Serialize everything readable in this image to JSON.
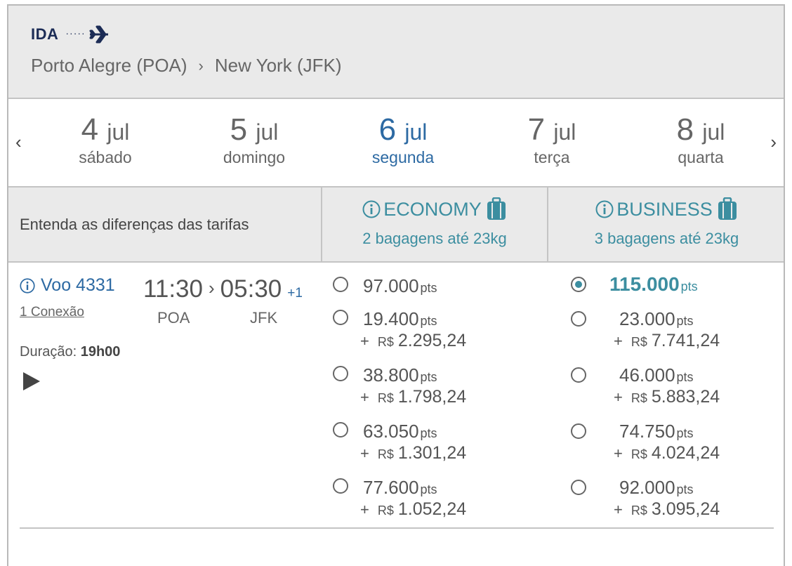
{
  "header": {
    "direction_label": "IDA",
    "origin": "Porto Alegre (POA)",
    "destination": "New York (JFK)"
  },
  "dates": [
    {
      "day": "4",
      "month": "jul",
      "weekday": "sábado",
      "active": false
    },
    {
      "day": "5",
      "month": "jul",
      "weekday": "domingo",
      "active": false
    },
    {
      "day": "6",
      "month": "jul",
      "weekday": "segunda",
      "active": true
    },
    {
      "day": "7",
      "month": "jul",
      "weekday": "terça",
      "active": false
    },
    {
      "day": "8",
      "month": "jul",
      "weekday": "quarta",
      "active": false
    }
  ],
  "cabins": {
    "entenda": "Entenda as diferenças das tarifas",
    "economy": {
      "title": "ECONOMY",
      "bags": "2 bagagens até 23kg"
    },
    "business": {
      "title": "BUSINESS",
      "bags": "3 bagagens até 23kg"
    }
  },
  "flight": {
    "number": "Voo 4331",
    "connections": "1 Conexão",
    "depart_time": "11:30",
    "arrive_time": "05:30",
    "day_offset": "+1",
    "origin_code": "POA",
    "dest_code": "JFK",
    "duration_label": "Duração:",
    "duration_value": "19h00"
  },
  "units": {
    "pts": "pts",
    "plus": "+",
    "currency": "R$"
  },
  "economy_fares": [
    {
      "points": "97.000",
      "cash": ""
    },
    {
      "points": "19.400",
      "cash": "2.295,24"
    },
    {
      "points": "38.800",
      "cash": "1.798,24"
    },
    {
      "points": "63.050",
      "cash": "1.301,24"
    },
    {
      "points": "77.600",
      "cash": "1.052,24"
    }
  ],
  "business_fares": [
    {
      "points": "115.000",
      "cash": "",
      "selected": true
    },
    {
      "points": "23.000",
      "cash": "7.741,24"
    },
    {
      "points": "46.000",
      "cash": "5.883,24"
    },
    {
      "points": "74.750",
      "cash": "4.024,24"
    },
    {
      "points": "92.000",
      "cash": "3.095,24"
    }
  ],
  "colors": {
    "accent_blue": "#2d6aa3",
    "teal": "#3c8ea0",
    "navy": "#1c2c56",
    "header_bg": "#eaeaea"
  },
  "icons": [
    "airplane-icon",
    "chevron-right-icon",
    "chevron-left-icon",
    "info-icon",
    "luggage-icon",
    "play-icon"
  ]
}
